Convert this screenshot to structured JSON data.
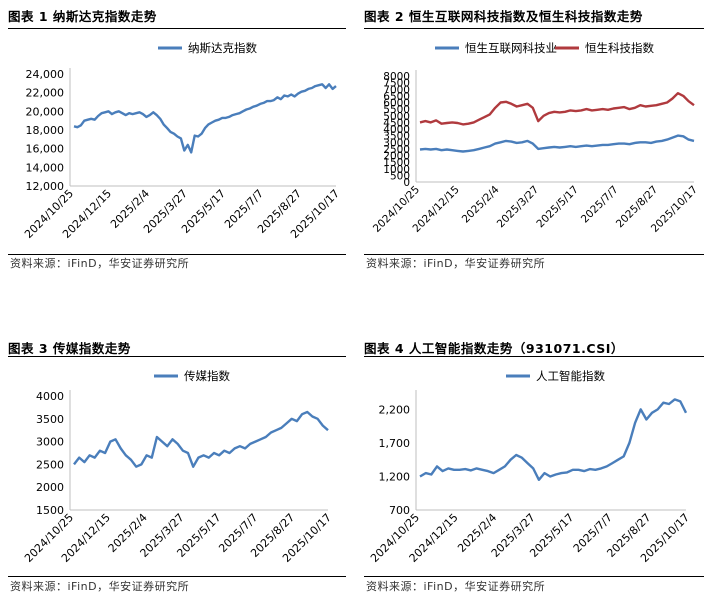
{
  "colors": {
    "blue": "#4A7EBB",
    "red": "#B03A3E",
    "axis": "#BFBFBF",
    "text": "#000000"
  },
  "panels": [
    {
      "title": "图表 1 纳斯达克指数走势",
      "source": "资料来源：iFinD，华安证券研究所"
    },
    {
      "title": "图表 2 恒生互联网科技指数及恒生科技指数走势",
      "source": "资料来源：iFinD，华安证券研究所"
    },
    {
      "title": "图表 3 传媒指数走势",
      "source": "资料来源：iFinD，华安证券研究所"
    },
    {
      "title": "图表 4 人工智能指数走势（931071.CSI）",
      "source": "资料来源：iFinD，华安证券研究所"
    }
  ],
  "chart_data": [
    {
      "type": "line",
      "x_tick_labels": [
        "2024/10/25",
        "2024/12/15",
        "2025/2/4",
        "2025/3/27",
        "2025/5/17",
        "2025/7/7",
        "2025/8/27",
        "2025/10/17"
      ],
      "y_tick_labels": [
        "12,000",
        "14,000",
        "16,000",
        "18,000",
        "20,000",
        "22,000",
        "24,000"
      ],
      "ylim": [
        12000,
        24000
      ],
      "legend_position": "top",
      "series": [
        {
          "name": "纳斯达克指数",
          "color": "#4A7EBB",
          "values": [
            18400,
            18300,
            18500,
            19000,
            19100,
            19200,
            19100,
            19500,
            19800,
            19900,
            20000,
            19700,
            19900,
            20000,
            19800,
            19600,
            19800,
            19700,
            19800,
            19900,
            19700,
            19400,
            19600,
            19900,
            19600,
            19200,
            18600,
            18200,
            17800,
            17600,
            17300,
            17100,
            15800,
            16400,
            15600,
            17400,
            17300,
            17600,
            18200,
            18600,
            18800,
            19000,
            19100,
            19300,
            19300,
            19400,
            19600,
            19700,
            19800,
            20000,
            20200,
            20300,
            20500,
            20600,
            20800,
            20900,
            21100,
            21100,
            21200,
            21500,
            21300,
            21700,
            21600,
            21800,
            21600,
            21900,
            22100,
            22200,
            22400,
            22500,
            22700,
            22800,
            22900,
            22500,
            22900,
            22400,
            22700
          ]
        }
      ]
    },
    {
      "type": "line",
      "x_tick_labels": [
        "2024/10/25",
        "2024/12/15",
        "2025/2/4",
        "2025/3/27",
        "2025/5/17",
        "2025/7/7",
        "2025/8/27",
        "2025/10/17"
      ],
      "y_tick_labels": [
        "0",
        "500",
        "1000",
        "1500",
        "2000",
        "2500",
        "3000",
        "3500",
        "4000",
        "4500",
        "5000",
        "5500",
        "6000",
        "6500",
        "7000",
        "7500",
        "8000"
      ],
      "ylim": [
        0,
        8000
      ],
      "legend_position": "top",
      "series": [
        {
          "name": "恒生互联网科技业",
          "color": "#4A7EBB",
          "values": [
            2450,
            2500,
            2450,
            2500,
            2400,
            2450,
            2400,
            2350,
            2300,
            2350,
            2400,
            2500,
            2600,
            2700,
            2900,
            3000,
            3100,
            3050,
            2950,
            3000,
            3100,
            2900,
            2500,
            2550,
            2600,
            2650,
            2600,
            2650,
            2700,
            2650,
            2700,
            2750,
            2700,
            2750,
            2800,
            2800,
            2850,
            2900,
            2900,
            2850,
            2950,
            3000,
            3000,
            2950,
            3050,
            3100,
            3200,
            3350,
            3500,
            3450,
            3200,
            3100
          ]
        },
        {
          "name": "恒生科技指数",
          "color": "#B03A3E",
          "values": [
            4500,
            4600,
            4500,
            4650,
            4400,
            4450,
            4500,
            4450,
            4350,
            4400,
            4500,
            4700,
            4900,
            5100,
            5600,
            6000,
            6050,
            5900,
            5700,
            5800,
            5900,
            5600,
            4600,
            5000,
            5200,
            5300,
            5250,
            5300,
            5400,
            5350,
            5400,
            5500,
            5400,
            5450,
            5500,
            5450,
            5550,
            5600,
            5650,
            5500,
            5600,
            5800,
            5700,
            5750,
            5800,
            5900,
            6000,
            6300,
            6700,
            6500,
            6100,
            5800
          ]
        }
      ]
    },
    {
      "type": "line",
      "x_tick_labels": [
        "2024/10/25",
        "2024/12/15",
        "2025/2/4",
        "2025/3/27",
        "2025/5/17",
        "2025/7/7",
        "2025/8/27",
        "2025/10/17"
      ],
      "y_tick_labels": [
        "1500",
        "2000",
        "2500",
        "3000",
        "3500",
        "4000"
      ],
      "ylim": [
        1500,
        4000
      ],
      "legend_position": "top",
      "series": [
        {
          "name": "传媒指数",
          "color": "#4A7EBB",
          "values": [
            2500,
            2650,
            2550,
            2700,
            2650,
            2800,
            2750,
            3000,
            3050,
            2850,
            2700,
            2600,
            2450,
            2500,
            2700,
            2650,
            3100,
            3000,
            2900,
            3050,
            2950,
            2800,
            2750,
            2450,
            2650,
            2700,
            2650,
            2750,
            2700,
            2800,
            2750,
            2850,
            2900,
            2850,
            2950,
            3000,
            3050,
            3100,
            3200,
            3250,
            3300,
            3400,
            3500,
            3450,
            3600,
            3650,
            3550,
            3500,
            3350,
            3250
          ]
        }
      ]
    },
    {
      "type": "line",
      "x_tick_labels": [
        "2024/10/25",
        "2024/12/15",
        "2025/2/4",
        "2025/3/27",
        "2025/5/17",
        "2025/7/7",
        "2025/8/27",
        "2025/10/17"
      ],
      "y_tick_labels": [
        "700",
        "1,200",
        "1,700",
        "2,200"
      ],
      "ylim": [
        700,
        2400
      ],
      "legend_position": "top",
      "series": [
        {
          "name": "人工智能指数",
          "color": "#4A7EBB",
          "values": [
            1200,
            1250,
            1230,
            1350,
            1280,
            1320,
            1300,
            1300,
            1310,
            1290,
            1320,
            1300,
            1280,
            1250,
            1300,
            1350,
            1450,
            1520,
            1480,
            1400,
            1320,
            1150,
            1250,
            1200,
            1230,
            1250,
            1260,
            1300,
            1300,
            1280,
            1310,
            1300,
            1320,
            1350,
            1400,
            1450,
            1500,
            1700,
            2000,
            2200,
            2050,
            2150,
            2200,
            2300,
            2280,
            2350,
            2320,
            2150
          ]
        }
      ]
    }
  ]
}
